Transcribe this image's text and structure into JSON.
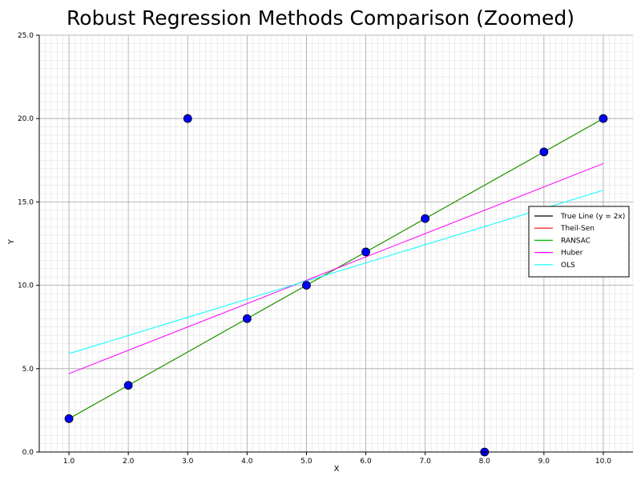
{
  "chart_data": {
    "type": "scatter",
    "title": "Robust Regression Methods Comparison (Zoomed)",
    "xlabel": "X",
    "ylabel": "Y",
    "xlim": [
      0.5,
      10.5
    ],
    "ylim": [
      0,
      25
    ],
    "xticks": [
      1,
      2,
      3,
      4,
      5,
      6,
      7,
      8,
      9,
      10
    ],
    "xtick_labels": [
      "1.0",
      "2.0",
      "3.0",
      "4.0",
      "5.0",
      "6.0",
      "7.0",
      "8.0",
      "9.0",
      "10.0"
    ],
    "yticks": [
      0,
      5,
      10,
      15,
      20,
      25
    ],
    "ytick_labels": [
      "0.0",
      "5.0",
      "10.0",
      "15.0",
      "20.0",
      "25.0"
    ],
    "grid": true,
    "legend_position": "right",
    "points": {
      "x": [
        1,
        2,
        3,
        4,
        5,
        6,
        7,
        8,
        9,
        10
      ],
      "y": [
        2,
        4,
        20,
        8,
        10,
        12,
        14,
        0,
        18,
        20
      ],
      "color": "#0000ff"
    },
    "series": [
      {
        "name": "True Line (y = 2x)",
        "color": "#000000",
        "x": [
          1,
          10
        ],
        "y": [
          2,
          20
        ]
      },
      {
        "name": "Theil-Sen",
        "color": "#ff0000",
        "x": [
          1,
          10
        ],
        "y": [
          2,
          20
        ]
      },
      {
        "name": "RANSAC",
        "color": "#00bb00",
        "x": [
          1,
          10
        ],
        "y": [
          2,
          20
        ]
      },
      {
        "name": "Huber",
        "color": "#ff00ff",
        "x": [
          1,
          10
        ],
        "y": [
          4.7,
          17.3
        ]
      },
      {
        "name": "OLS",
        "color": "#00ffff",
        "x": [
          1,
          10
        ],
        "y": [
          5.9,
          15.7
        ]
      }
    ]
  }
}
